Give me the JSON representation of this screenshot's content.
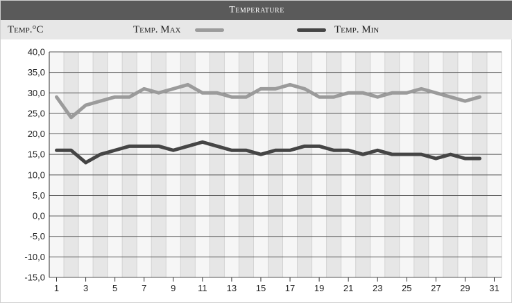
{
  "title": "Temperature",
  "unit_label": "Temp.°C",
  "legend": {
    "max_label": "Temp. Max",
    "min_label": "Temp. Min"
  },
  "colors": {
    "title_bar": "#5a5a5a",
    "header_band": "#e7e7e7",
    "stripe": "#e6e6e6",
    "plot_bg": "#f6f6f6",
    "max_line": "#9b9b9b",
    "min_line": "#454545"
  },
  "chart_data": {
    "type": "line",
    "x": [
      1,
      2,
      3,
      4,
      5,
      6,
      7,
      8,
      9,
      10,
      11,
      12,
      13,
      14,
      15,
      16,
      17,
      18,
      19,
      20,
      21,
      22,
      23,
      24,
      25,
      26,
      27,
      28,
      29,
      30
    ],
    "xlim": [
      1,
      31
    ],
    "x_ticks": [
      1,
      3,
      5,
      7,
      9,
      11,
      13,
      15,
      17,
      19,
      21,
      23,
      25,
      27,
      29,
      31
    ],
    "ylim": [
      -15,
      40
    ],
    "y_ticks": [
      "40,0",
      "35,0",
      "30,0",
      "25,0",
      "20,0",
      "15,0",
      "10,0",
      "5,0",
      "0,0",
      "-5,0",
      "-10,0",
      "-15,0"
    ],
    "grid": true,
    "legend_position": "top",
    "series": [
      {
        "name": "Temp. Max",
        "color": "#9b9b9b",
        "values": [
          29,
          24,
          27,
          28,
          29,
          29,
          31,
          30,
          31,
          32,
          30,
          30,
          29,
          29,
          31,
          31,
          32,
          31,
          29,
          29,
          30,
          30,
          29,
          30,
          30,
          31,
          30,
          29,
          28,
          29
        ]
      },
      {
        "name": "Temp. Min",
        "color": "#454545",
        "values": [
          16,
          16,
          13,
          15,
          16,
          17,
          17,
          17,
          16,
          17,
          18,
          17,
          16,
          16,
          15,
          16,
          16,
          17,
          17,
          16,
          16,
          15,
          16,
          15,
          15,
          15,
          14,
          15,
          14,
          14
        ]
      }
    ]
  }
}
